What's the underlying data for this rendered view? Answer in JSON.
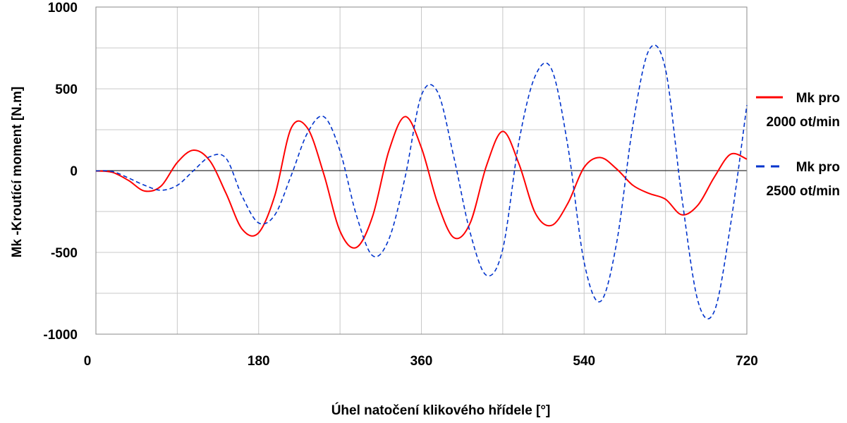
{
  "chart_data": {
    "type": "line",
    "title": "",
    "xlabel": "Úhel natočení klikového hřídele [°]",
    "ylabel": "Mk -Kroutící moment [N.m]",
    "xlim": [
      0,
      720
    ],
    "ylim": [
      -1000,
      1000
    ],
    "x_ticks": [
      "0",
      "180",
      "360",
      "540",
      "720"
    ],
    "y_ticks": [
      "1000",
      "500",
      "0",
      "-500",
      "-1000"
    ],
    "x_tick_values": [
      0,
      180,
      360,
      540,
      720
    ],
    "y_tick_values": [
      1000,
      500,
      0,
      -500,
      -1000
    ],
    "grid": true,
    "legend_position": "right",
    "series": [
      {
        "name_lines": [
          "Mk pro",
          "2000 ot/min"
        ],
        "color": "#ff0000",
        "dash": "solid",
        "x": [
          0,
          18,
          36,
          54,
          72,
          90,
          108,
          126,
          144,
          162,
          180,
          198,
          216,
          234,
          252,
          270,
          288,
          306,
          324,
          342,
          360,
          378,
          396,
          414,
          432,
          450,
          468,
          486,
          504,
          522,
          540,
          558,
          576,
          594,
          612,
          630,
          648,
          666,
          684,
          702,
          720
        ],
        "y": [
          -2,
          -10,
          -60,
          -125,
          -95,
          50,
          125,
          60,
          -140,
          -360,
          -380,
          -150,
          260,
          260,
          -20,
          -370,
          -470,
          -280,
          120,
          330,
          140,
          -200,
          -410,
          -320,
          30,
          240,
          40,
          -260,
          -335,
          -200,
          20,
          80,
          10,
          -90,
          -140,
          -175,
          -270,
          -210,
          -40,
          100,
          70
        ]
      },
      {
        "name_lines": [
          "Mk pro",
          "2500 ot/min"
        ],
        "color": "#0033cc",
        "dash": "dashed",
        "x": [
          0,
          18,
          36,
          54,
          72,
          90,
          108,
          126,
          144,
          162,
          180,
          198,
          216,
          234,
          252,
          270,
          288,
          306,
          324,
          342,
          360,
          378,
          396,
          414,
          432,
          450,
          468,
          486,
          504,
          522,
          540,
          558,
          576,
          594,
          612,
          630,
          648,
          666,
          684,
          702,
          720
        ],
        "y": [
          -2,
          -5,
          -45,
          -90,
          -120,
          -90,
          0,
          85,
          75,
          -160,
          -320,
          -270,
          -30,
          230,
          330,
          120,
          -270,
          -520,
          -420,
          -40,
          460,
          480,
          80,
          -380,
          -640,
          -480,
          180,
          580,
          620,
          150,
          -560,
          -800,
          -440,
          280,
          740,
          620,
          -160,
          -800,
          -860,
          -330,
          400
        ]
      }
    ]
  }
}
